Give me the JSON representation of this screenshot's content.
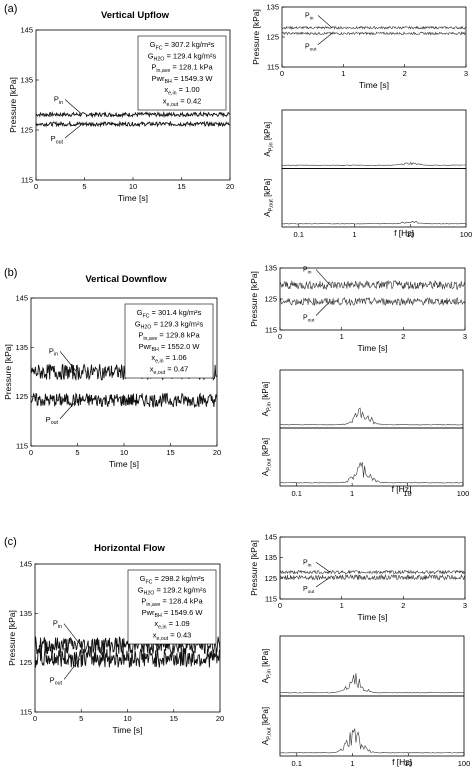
{
  "colors": {
    "axis": "#000000",
    "trace": "#111111",
    "background": "#ffffff"
  },
  "panels": [
    {
      "label": "(a)",
      "title": "Vertical Upflow",
      "legend": [
        "G_FC = 307.2 kg/m²s",
        "G_H2O = 129.4 kg/m²s",
        "P_in,ave = 128.1 kPa",
        "Pwr_BH = 1549.3 W",
        "x_e,in = 1.00",
        "x_e,out = 0.42"
      ]
    },
    {
      "label": "(b)",
      "title": "Vertical Downflow",
      "legend": [
        "G_FC = 301.4 kg/m²s",
        "G_H2O = 129.3 kg/m²s",
        "P_in,ave = 129.8 kPa",
        "Pwr_BH = 1552.0 W",
        "x_e,in = 1.06",
        "x_e,out = 0.47"
      ]
    },
    {
      "label": "(c)",
      "title": "Horizontal Flow",
      "legend": [
        "G_FC = 298.2 kg/m²s",
        "G_H2O = 129.2 kg/m²s",
        "P_in,ave = 128.4 kPa",
        "Pwr_BH = 1549.6 W",
        "x_e,in = 1.09",
        "x_e,out = 0.43"
      ]
    }
  ],
  "chart_data": [
    {
      "id": "a-time",
      "type": "line",
      "xlabel": "Time [s]",
      "ylabel": "Pressure [kPa]",
      "xlim": [
        0,
        20
      ],
      "ylim": [
        115,
        145
      ],
      "xticks": [
        "0",
        "5",
        "10",
        "15",
        "20"
      ],
      "yticks": [
        "115",
        "125",
        "135",
        "145"
      ],
      "series": [
        {
          "name": "P_in",
          "mean": 128.1,
          "amplitude": 0.4
        },
        {
          "name": "P_out",
          "mean": 126.2,
          "amplitude": 0.4
        }
      ],
      "grid": false
    },
    {
      "id": "a-zoom",
      "type": "line",
      "xlabel": "Time [s]",
      "ylabel": "Pressure [kPa]",
      "xlim": [
        0,
        3
      ],
      "ylim": [
        115,
        135
      ],
      "xticks": [
        "0",
        "1",
        "2",
        "3"
      ],
      "yticks": [
        "115",
        "125",
        "135"
      ],
      "series": [
        {
          "name": "P_in",
          "mean": 128.1,
          "amplitude": 0.4
        },
        {
          "name": "P_out",
          "mean": 126.2,
          "amplitude": 0.4
        }
      ]
    },
    {
      "id": "a-fft",
      "type": "line",
      "xlabel": "f [Hz]",
      "xscale": "log",
      "xlim": [
        0.05,
        100
      ],
      "xticks": [
        "0.1",
        "1",
        "10",
        "100"
      ],
      "ylabels": [
        "A_P,in [kPa]",
        "A_P,out [kPa]"
      ],
      "spectra": [
        {
          "name": "A_P,in",
          "peak_hz": 10,
          "peak_rel": 0.05
        },
        {
          "name": "A_P,out",
          "peak_hz": 10,
          "peak_rel": 0.05
        }
      ]
    },
    {
      "id": "b-time",
      "type": "line",
      "xlabel": "Time [s]",
      "ylabel": "Pressure [kPa]",
      "xlim": [
        0,
        20
      ],
      "ylim": [
        115,
        145
      ],
      "xticks": [
        "0",
        "5",
        "10",
        "15",
        "20"
      ],
      "yticks": [
        "115",
        "125",
        "135",
        "145"
      ],
      "series": [
        {
          "name": "P_in",
          "mean": 130.0,
          "amplitude": 1.6
        },
        {
          "name": "P_out",
          "mean": 124.3,
          "amplitude": 1.4
        }
      ]
    },
    {
      "id": "b-zoom",
      "type": "line",
      "xlabel": "Time [s]",
      "ylabel": "Pressure [kPa]",
      "xlim": [
        0,
        3
      ],
      "ylim": [
        115,
        135
      ],
      "xticks": [
        "0",
        "1",
        "2",
        "3"
      ],
      "yticks": [
        "115",
        "125",
        "135"
      ],
      "series": [
        {
          "name": "P_in",
          "mean": 129.5,
          "amplitude": 1.4
        },
        {
          "name": "P_out",
          "mean": 124.2,
          "amplitude": 1.2
        }
      ]
    },
    {
      "id": "b-fft",
      "type": "line",
      "xlabel": "f [Hz]",
      "xscale": "log",
      "xlim": [
        0.05,
        100
      ],
      "xticks": [
        "0.1",
        "1",
        "10",
        "100"
      ],
      "ylabels": [
        "A_P,in [kPa]",
        "A_P,out [kPa]"
      ],
      "spectra": [
        {
          "name": "A_P,in",
          "peak_hz": 1.5,
          "peak_rel": 0.3
        },
        {
          "name": "A_P,out",
          "peak_hz": 1.5,
          "peak_rel": 0.35
        }
      ]
    },
    {
      "id": "c-time",
      "type": "line",
      "xlabel": "Time [s]",
      "ylabel": "Pressure [kPa]",
      "xlim": [
        0,
        20
      ],
      "ylim": [
        115,
        145
      ],
      "xticks": [
        "0",
        "5",
        "10",
        "15",
        "20"
      ],
      "yticks": [
        "115",
        "125",
        "135",
        "145"
      ],
      "series": [
        {
          "name": "P_in",
          "mean": 128.5,
          "amplitude": 1.8
        },
        {
          "name": "P_out",
          "mean": 126.0,
          "amplitude": 2.0
        }
      ]
    },
    {
      "id": "c-zoom",
      "type": "line",
      "xlabel": "Time [s]",
      "ylabel": "Pressure [kPa]",
      "xlim": [
        0,
        3
      ],
      "ylim": [
        115,
        145
      ],
      "xticks": [
        "0",
        "1",
        "2",
        "3"
      ],
      "yticks": [
        "115",
        "125",
        "135",
        "145"
      ],
      "series": [
        {
          "name": "P_in",
          "mean": 128.0,
          "amplitude": 0.8
        },
        {
          "name": "P_out",
          "mean": 125.5,
          "amplitude": 1.2
        }
      ]
    },
    {
      "id": "c-fft",
      "type": "line",
      "xlabel": "f [Hz]",
      "xscale": "log",
      "xlim": [
        0.05,
        100
      ],
      "xticks": [
        "0.1",
        "1",
        "10",
        "100"
      ],
      "ylabels": [
        "A_P,in [kPa]",
        "A_P,out [kPa]"
      ],
      "spectra": [
        {
          "name": "A_P,in",
          "peak_hz": 1.1,
          "peak_rel": 0.35
        },
        {
          "name": "A_P,out",
          "peak_hz": 1.1,
          "peak_rel": 0.4
        }
      ]
    }
  ]
}
